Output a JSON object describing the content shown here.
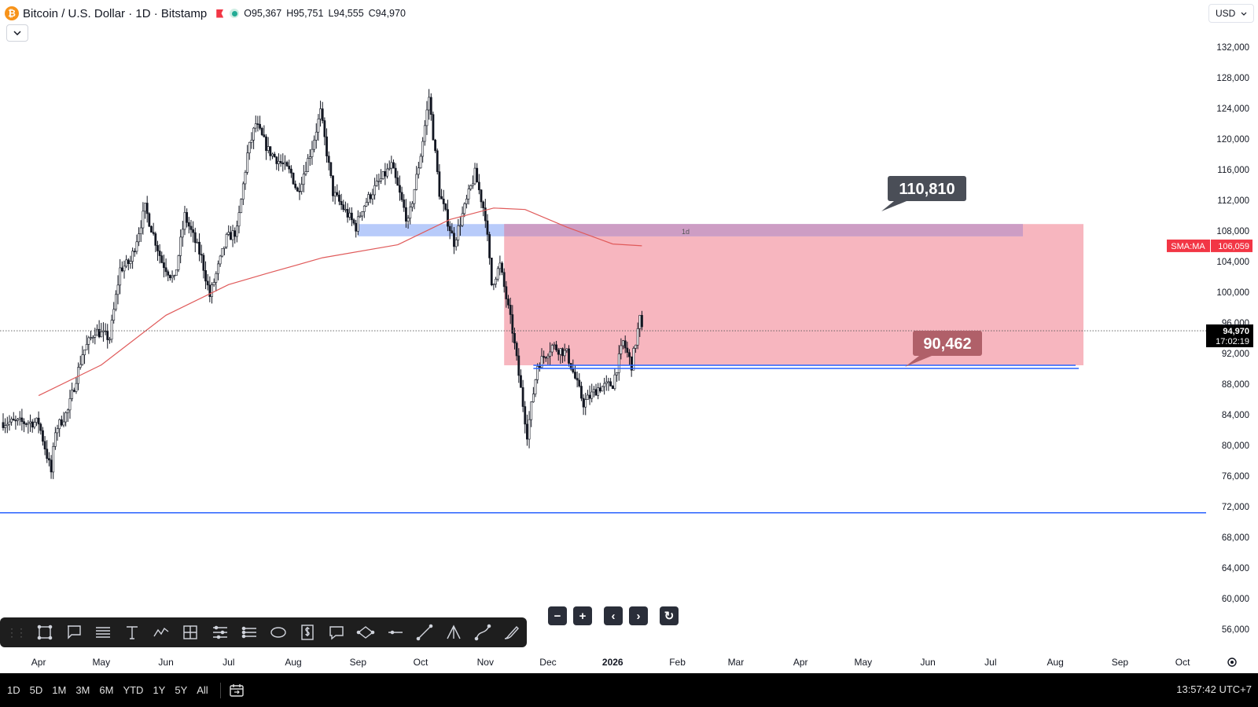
{
  "header": {
    "symbol_title": "Bitcoin / U.S. Dollar · 1D · Bitstamp",
    "btc_icon_glyph": "₿",
    "ohlc": {
      "open": "O95,367",
      "high": "H95,751",
      "low": "L94,555",
      "close": "C94,970"
    },
    "currency": "USD"
  },
  "colors": {
    "candle": "#131722",
    "sma": "#e05a5a",
    "zone_red": "#f7b6bf",
    "zone_blue": "#b8cbfa",
    "zone_overlap": "#cd9dc4",
    "hline": "#2962ff",
    "label_dark": "#4a4e57",
    "label_red": "#b06069",
    "price_tag_bg": "#000000",
    "sma_tag_bg": "#f23645"
  },
  "chart_data": {
    "type": "candlestick",
    "y_axis": {
      "range": [
        54000,
        134000
      ],
      "ticks": [
        "132,000",
        "128,000",
        "124,000",
        "120,000",
        "116,000",
        "112,000",
        "108,000",
        "104,000",
        "100,000",
        "96,000",
        "92,000",
        "88,000",
        "84,000",
        "80,000",
        "76,000",
        "72,000",
        "68,000",
        "64,000",
        "60,000",
        "56,000"
      ]
    },
    "x_axis": {
      "labels": [
        "Apr",
        "May",
        "Jun",
        "Jul",
        "Aug",
        "Sep",
        "Oct",
        "Nov",
        "Dec",
        "2026",
        "Feb",
        "Mar",
        "Apr",
        "May",
        "Jun",
        "Jul",
        "Aug",
        "Sep",
        "Oct"
      ]
    },
    "price_path": [
      [
        "2025-04-01",
        83000
      ],
      [
        "2025-04-07",
        76500
      ],
      [
        "2025-04-09",
        82000
      ],
      [
        "2025-04-15",
        84500
      ],
      [
        "2025-04-22",
        92000
      ],
      [
        "2025-04-28",
        95000
      ],
      [
        "2025-05-05",
        94000
      ],
      [
        "2025-05-10",
        103000
      ],
      [
        "2025-05-15",
        104000
      ],
      [
        "2025-05-22",
        111000
      ],
      [
        "2025-05-30",
        104000
      ],
      [
        "2025-06-05",
        101500
      ],
      [
        "2025-06-10",
        110000
      ],
      [
        "2025-06-18",
        104500
      ],
      [
        "2025-06-22",
        99500
      ],
      [
        "2025-06-30",
        107000
      ],
      [
        "2025-07-05",
        108000
      ],
      [
        "2025-07-10",
        118000
      ],
      [
        "2025-07-14",
        122000
      ],
      [
        "2025-07-20",
        118500
      ],
      [
        "2025-07-31",
        115500
      ],
      [
        "2025-08-03",
        113000
      ],
      [
        "2025-08-10",
        119000
      ],
      [
        "2025-08-14",
        123500
      ],
      [
        "2025-08-20",
        113000
      ],
      [
        "2025-08-31",
        108500
      ],
      [
        "2025-09-03",
        111000
      ],
      [
        "2025-09-10",
        114000
      ],
      [
        "2025-09-17",
        116500
      ],
      [
        "2025-09-25",
        109000
      ],
      [
        "2025-10-01",
        118000
      ],
      [
        "2025-10-05",
        125500
      ],
      [
        "2025-10-10",
        113000
      ],
      [
        "2025-10-11",
        112000
      ],
      [
        "2025-10-17",
        106500
      ],
      [
        "2025-10-27",
        115500
      ],
      [
        "2025-11-01",
        110000
      ],
      [
        "2025-11-04",
        101000
      ],
      [
        "2025-11-08",
        103500
      ],
      [
        "2025-11-14",
        95000
      ],
      [
        "2025-11-21",
        81500
      ],
      [
        "2025-11-26",
        90500
      ],
      [
        "2025-12-03",
        93000
      ],
      [
        "2025-12-10",
        92000
      ],
      [
        "2025-12-18",
        85500
      ],
      [
        "2025-12-25",
        87500
      ],
      [
        "2026-01-01",
        88000
      ],
      [
        "2026-01-06",
        93500
      ],
      [
        "2026-01-10",
        90500
      ],
      [
        "2026-01-14",
        96500
      ],
      [
        "2026-01-15",
        94970
      ]
    ],
    "sma": {
      "label": "SMA:MA",
      "value": "106,059"
    },
    "last_price": {
      "value": "94,970",
      "countdown": "17:02:19"
    },
    "zones": {
      "mid_label": "1d"
    },
    "targets": {
      "upper": "110,810",
      "lower": "90,462"
    }
  },
  "toolbar": {
    "tools": [
      "rectangle-icon",
      "callout-icon",
      "parallel-lines-icon",
      "text-icon",
      "path-icon",
      "crosshair-box-icon",
      "fib-levels-icon",
      "pitchfork-levels-icon",
      "ellipse-icon",
      "price-label-icon",
      "comment-icon",
      "rotated-ellipse-icon",
      "horizontal-line-icon",
      "trend-line-icon",
      "triangle-pattern-icon",
      "curve-icon",
      "brush-icon"
    ],
    "grip": "⋮⋮"
  },
  "nav": {
    "zoom_out": "−",
    "zoom_in": "+",
    "scroll_left": "‹",
    "scroll_right": "›",
    "reset": "↻"
  },
  "bottom": {
    "timeframes": [
      "1D",
      "5D",
      "1M",
      "3M",
      "6M",
      "YTD",
      "1Y",
      "5Y",
      "All"
    ],
    "clock": "13:57:42 UTC+7"
  }
}
